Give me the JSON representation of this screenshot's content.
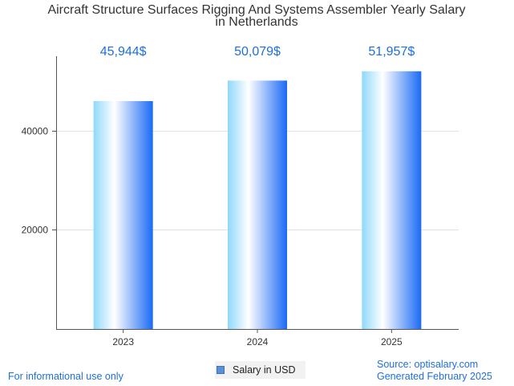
{
  "chart_data": {
    "type": "bar",
    "title_lines": [
      "Aircraft Structure Surfaces Rigging And Systems Assembler Yearly Salary",
      "in Netherlands"
    ],
    "categories": [
      "2023",
      "2024",
      "2025"
    ],
    "series": [
      {
        "name": "Salary in USD",
        "values": [
          45944,
          50079,
          51957
        ]
      }
    ],
    "value_labels": [
      "45,944$",
      "50,079$",
      "51,957$"
    ],
    "y_ticks": [
      20000,
      40000
    ],
    "ylim": [
      0,
      55000
    ],
    "grid": true,
    "legend": "bottom-center",
    "colors": {
      "bar_dark": "#1a6af5",
      "bar_light": "#8fd8fa",
      "value_label": "#1e6fd9"
    }
  },
  "footer": {
    "disclaimer": "For informational use only",
    "source": "Source: optisalary.com",
    "generated": "Generated February 2025"
  }
}
